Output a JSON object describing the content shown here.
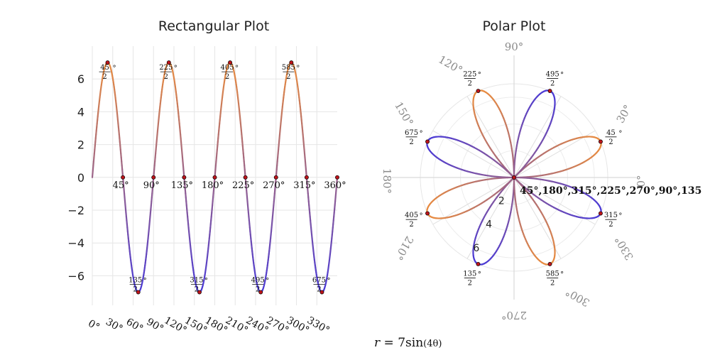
{
  "chart_data": [
    {
      "type": "line",
      "title": "Rectangular Plot",
      "equation": "r = 7 sin(4θ)",
      "x_unit": "degrees",
      "xlim": [
        0,
        360
      ],
      "ylim": [
        -7.8,
        8.0
      ],
      "y_ticks": [
        6,
        4,
        2,
        0,
        -2,
        -4,
        -6
      ],
      "y_tick_labels": [
        "6",
        "4",
        "2",
        "0",
        "−2",
        "−4",
        "−6"
      ],
      "x_tick_values": [
        0,
        30,
        60,
        90,
        120,
        150,
        180,
        210,
        240,
        270,
        300,
        330
      ],
      "x_tick_labels": [
        "0°",
        "30°",
        "60°",
        "90°",
        "120°",
        "150°",
        "180°",
        "210°",
        "240°",
        "270°",
        "300°",
        "330°"
      ],
      "grid": true,
      "colors": {
        "positive": "#e98c3f",
        "negative": "#4a3ad6",
        "marker": "#c0141b"
      },
      "zero_points": [
        {
          "x": 45,
          "y": 0,
          "label": "45°"
        },
        {
          "x": 90,
          "y": 0,
          "label": "90°"
        },
        {
          "x": 135,
          "y": 0,
          "label": "135°"
        },
        {
          "x": 180,
          "y": 0,
          "label": "180°"
        },
        {
          "x": 225,
          "y": 0,
          "label": "225°"
        },
        {
          "x": 270,
          "y": 0,
          "label": "270°"
        },
        {
          "x": 315,
          "y": 0,
          "label": "315°"
        },
        {
          "x": 360,
          "y": 0,
          "label": "360°"
        }
      ],
      "extrema": [
        {
          "x": 22.5,
          "y": 7,
          "num": "45",
          "den": "2"
        },
        {
          "x": 67.5,
          "y": -7,
          "num": "135",
          "den": "2"
        },
        {
          "x": 112.5,
          "y": 7,
          "num": "225",
          "den": "2"
        },
        {
          "x": 157.5,
          "y": -7,
          "num": "315",
          "den": "2"
        },
        {
          "x": 202.5,
          "y": 7,
          "num": "405",
          "den": "2"
        },
        {
          "x": 247.5,
          "y": -7,
          "num": "495",
          "den": "2"
        },
        {
          "x": 292.5,
          "y": 7,
          "num": "585",
          "den": "2"
        },
        {
          "x": 337.5,
          "y": -7,
          "num": "675",
          "den": "2"
        }
      ]
    },
    {
      "type": "polar",
      "title": "Polar Plot",
      "equation": "r = 7 sin(4θ)",
      "r_max": 7,
      "r_ticks": [
        2,
        4,
        6
      ],
      "r_tick_labels": [
        "2",
        "4",
        "6"
      ],
      "angle_ticks": [
        0,
        30,
        90,
        120,
        150,
        180,
        210,
        270,
        300,
        330
      ],
      "angle_tick_labels": [
        "0°",
        "30°",
        "90°",
        "120°",
        "150°",
        "180°",
        "210°",
        "270°",
        "300°",
        "330°"
      ],
      "zero_label": "45°,180°,315°,225°,270°,90°,135",
      "tips": [
        {
          "deg": 22.5,
          "num": "45",
          "den": "2"
        },
        {
          "deg": 67.5,
          "num": "495",
          "den": "2"
        },
        {
          "deg": 112.5,
          "num": "225",
          "den": "2"
        },
        {
          "deg": 157.5,
          "num": "675",
          "den": "2"
        },
        {
          "deg": 202.5,
          "num": "405",
          "den": "2"
        },
        {
          "deg": 247.5,
          "num": "135",
          "den": "2"
        },
        {
          "deg": 292.5,
          "num": "585",
          "den": "2"
        },
        {
          "deg": 337.5,
          "num": "315",
          "den": "2"
        }
      ]
    }
  ],
  "caption": {
    "lhs": "r",
    "eq": " = ",
    "coef": "7",
    "fn": "sin",
    "arg": "(4θ)"
  }
}
